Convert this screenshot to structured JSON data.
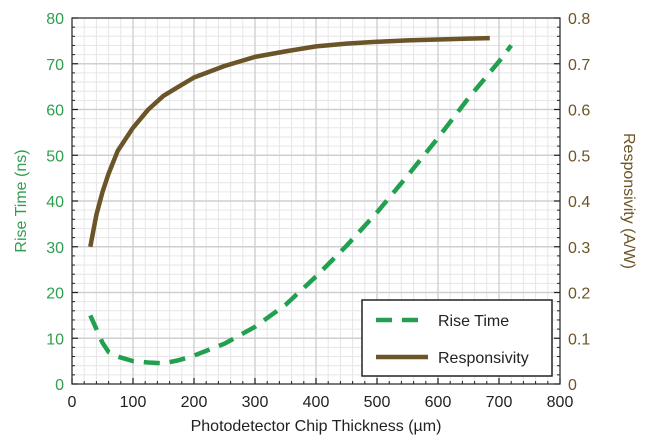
{
  "chart_data": {
    "type": "line",
    "title": "",
    "xlabel": "Photodetector Chip Thickness (µm)",
    "ylabel_left": "Rise Time (ns)",
    "ylabel_right": "Responsivity (A/W)",
    "xlim": [
      0,
      800
    ],
    "ylim_left": [
      0,
      80
    ],
    "ylim_right": [
      0,
      0.8
    ],
    "x_ticks": [
      "0",
      "100",
      "200",
      "300",
      "400",
      "500",
      "600",
      "700",
      "800"
    ],
    "y_ticks_left": [
      "0",
      "10",
      "20",
      "30",
      "40",
      "50",
      "60",
      "70",
      "80"
    ],
    "y_ticks_right": [
      "0",
      "0.1",
      "0.2",
      "0.3",
      "0.4",
      "0.5",
      "0.6",
      "0.7",
      "0.8"
    ],
    "grid": true,
    "legend_position": "bottom-right",
    "colors": {
      "rise_time": "#22a050",
      "responsivity": "#6b5427"
    },
    "series": [
      {
        "name": "Rise Time",
        "axis": "left",
        "style": "dashed",
        "x": [
          30,
          40,
          50,
          60,
          75,
          100,
          125,
          150,
          175,
          200,
          250,
          300,
          350,
          400,
          450,
          500,
          550,
          600,
          650,
          700,
          720
        ],
        "values": [
          15,
          12,
          9,
          7,
          6,
          5,
          4.7,
          4.5,
          5.2,
          6.2,
          8.8,
          12.5,
          17.3,
          23.5,
          30.2,
          37.5,
          45.5,
          53.8,
          62.5,
          70.5,
          74
        ]
      },
      {
        "name": "Responsivity",
        "axis": "right",
        "style": "solid",
        "x": [
          30,
          40,
          50,
          60,
          75,
          100,
          125,
          150,
          175,
          200,
          250,
          300,
          350,
          400,
          450,
          500,
          550,
          600,
          650,
          685
        ],
        "values": [
          0.3,
          0.37,
          0.42,
          0.46,
          0.51,
          0.56,
          0.6,
          0.63,
          0.65,
          0.67,
          0.695,
          0.715,
          0.727,
          0.738,
          0.744,
          0.748,
          0.751,
          0.753,
          0.755,
          0.756
        ]
      }
    ]
  }
}
